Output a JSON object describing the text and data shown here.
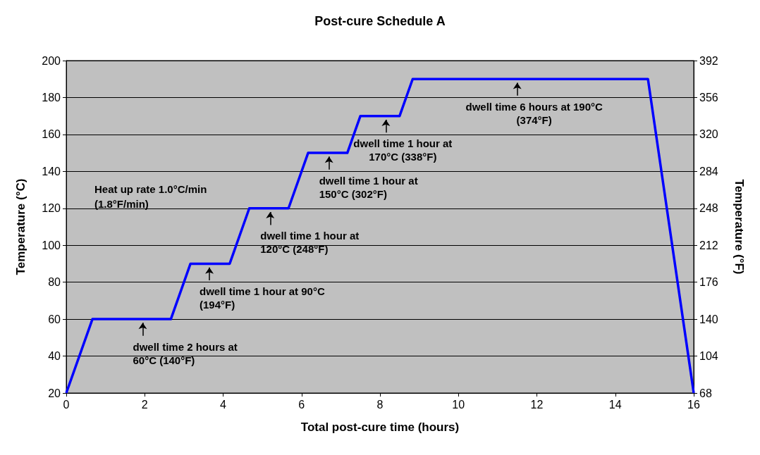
{
  "chart_data": {
    "type": "line",
    "title": "Post-cure Schedule A",
    "xlabel": "Total post-cure time (hours)",
    "ylabel": "Temperature (°C)",
    "y2label": "Temperature (°F)",
    "x": [
      0,
      0.667,
      2.667,
      3.167,
      4.167,
      4.667,
      5.667,
      6.167,
      7.167,
      7.5,
      8.5,
      8.833,
      14.833,
      16
    ],
    "series": [
      {
        "color": "#0000ff",
        "values": [
          20,
          60,
          60,
          90,
          90,
          120,
          120,
          150,
          150,
          170,
          170,
          190,
          190,
          20
        ]
      }
    ],
    "xlim": [
      0,
      16
    ],
    "xticks": [
      0,
      2,
      4,
      6,
      8,
      10,
      12,
      14,
      16
    ],
    "ylim": [
      20,
      200
    ],
    "yticks": [
      20,
      40,
      60,
      80,
      100,
      120,
      140,
      160,
      180,
      200
    ],
    "y2lim": [
      68,
      392
    ],
    "y2ticks": [
      68,
      104,
      140,
      176,
      212,
      248,
      284,
      320,
      356,
      392
    ],
    "grid": "y",
    "marker": "none",
    "line_style": "solid",
    "annotations": [
      "Heat up rate 1.0°C/min\n(1.8°F/min)",
      {
        "text": "dwell time 2 hours at\n60°C (140°F)",
        "x": 1.95,
        "y": 60
      },
      {
        "text": "dwell time 1 hour at 90°C\n(194°F)",
        "x": 3.65,
        "y": 90
      },
      {
        "text": "dwell time 1 hour at\n120°C (248°F)",
        "x": 5.2,
        "y": 120
      },
      {
        "text": "dwell time 1 hour at\n150°C (302°F)",
        "x": 6.7,
        "y": 150
      },
      {
        "text": "dwell time 1 hour at\n170°C (338°F)",
        "x": 8.15,
        "y": 170
      },
      {
        "text": "dwell time 6 hours at 190°C\n(374°F)",
        "x": 11.5,
        "y": 190
      }
    ]
  }
}
